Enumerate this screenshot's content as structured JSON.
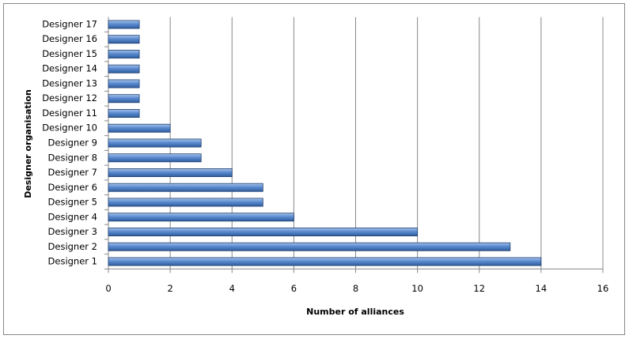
{
  "chart_data": {
    "type": "bar",
    "orientation": "horizontal",
    "x_label": "Number of alliances",
    "y_label": "Designer organisation",
    "categories": [
      "Designer 1",
      "Designer 2",
      "Designer 3",
      "Designer 4",
      "Designer 5",
      "Designer 6",
      "Designer 7",
      "Designer 8",
      "Designer 9",
      "Designer 10",
      "Designer 11",
      "Designer 12",
      "Designer 13",
      "Designer 14",
      "Designer 15",
      "Designer 16",
      "Designer 17"
    ],
    "values": [
      14,
      13,
      10,
      6,
      5,
      5,
      4,
      3,
      3,
      2,
      1,
      1,
      1,
      1,
      1,
      1,
      1
    ],
    "color": "#4f81bd",
    "xlim": [
      0,
      16
    ],
    "xticks": [
      0,
      2,
      4,
      6,
      8,
      10,
      12,
      14,
      16
    ],
    "grid": true
  }
}
